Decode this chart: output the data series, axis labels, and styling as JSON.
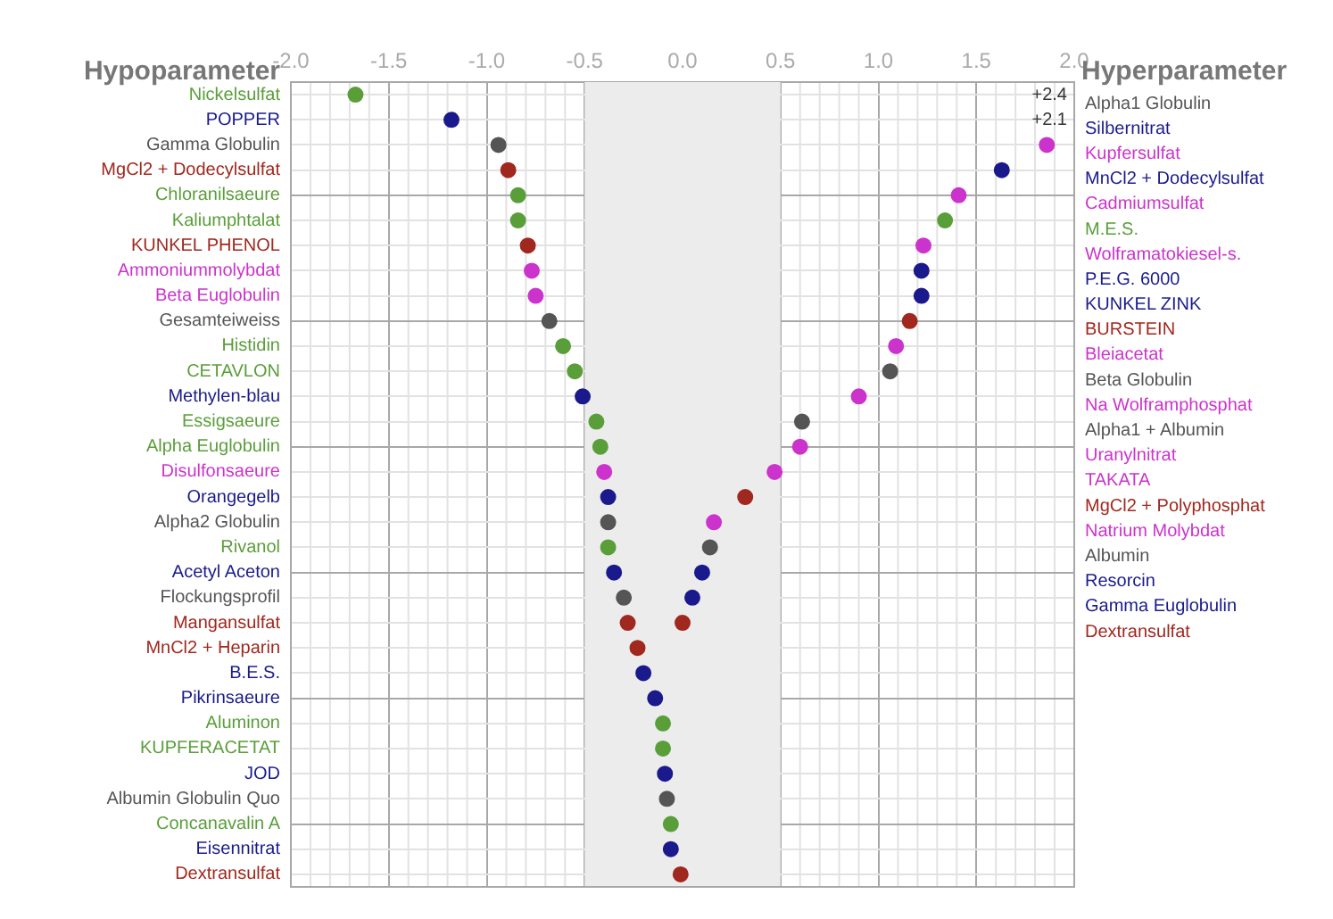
{
  "chart_data": {
    "type": "scatter",
    "orientation": "horizontal",
    "ylabel": "Hypoparameter",
    "y2label": "Hyperparameter",
    "categories": [
      "Nickelsulfat",
      "POPPER",
      "Gamma Globulin",
      "MgCl2 + Dodecylsulfat",
      "Chloranilsaeure",
      "Kaliumphtalat",
      "KUNKEL PHENOL",
      "Ammoniummolybdat",
      "Beta Euglobulin",
      "Gesamteiweiss",
      "Histidin",
      "CETAVLON",
      "Methylen-blau",
      "Essigsaeure",
      "Alpha Euglobulin",
      "Disulfonsaeure",
      "Orangegelb",
      "Alpha2 Globulin",
      "Rivanol",
      "Acetyl Aceton",
      "Flockungsprofil",
      "Mangansulfat",
      "MnCl2 + Heparin",
      "B.E.S.",
      "Pikrinsaeure",
      "Aluminon",
      "KUPFERACETAT",
      "JOD",
      "Albumin Globulin Quo",
      "Concanavalin A",
      "Eisennitrat",
      "Dextransulfat"
    ],
    "y2_categories": [
      "Alpha1 Globulin",
      "Silbernitrat",
      "Kupfersulfat",
      "MnCl2 + Dodecylsulfat",
      "Cadmiumsulfat",
      "M.E.S.",
      "Wolframatokiesel-s.",
      "P.E.G. 6000",
      "KUNKEL ZINK",
      "BURSTEIN",
      "Bleiacetat",
      "Beta Globulin",
      "Na Wolframphosphat",
      "Alpha1 + Albumin",
      "Uranylnitrat",
      "TAKATA",
      "MgCl2 + Polyphosphat",
      "Natrium Molybdat",
      "Albumin",
      "Resorcin",
      "Gamma Euglobulin",
      "Dextransulfat",
      null,
      null,
      null,
      null,
      null,
      null,
      null,
      null,
      null,
      null
    ],
    "series": [
      {
        "values": [
          -1.67,
          -1.18,
          -0.94,
          -0.89,
          -0.84,
          -0.84,
          -0.79,
          -0.77,
          -0.75,
          -0.68,
          -0.61,
          -0.55,
          -0.51,
          -0.44,
          -0.42,
          -0.4,
          -0.38,
          -0.38,
          -0.38,
          -0.35,
          -0.3,
          -0.28,
          -0.23,
          -0.2,
          -0.14,
          -0.1,
          -0.1,
          -0.09,
          -0.08,
          -0.06,
          -0.06,
          -0.01
        ],
        "colors": [
          "#5a9e3a",
          "#1a1a8c",
          "#555555",
          "#a0281e",
          "#5a9e3a",
          "#5a9e3a",
          "#a0281e",
          "#cc33cc",
          "#cc33cc",
          "#555555",
          "#5a9e3a",
          "#5a9e3a",
          "#1a1a8c",
          "#5a9e3a",
          "#5a9e3a",
          "#cc33cc",
          "#1a1a8c",
          "#555555",
          "#5a9e3a",
          "#1a1a8c",
          "#555555",
          "#a0281e",
          "#a0281e",
          "#1a1a8c",
          "#1a1a8c",
          "#5a9e3a",
          "#5a9e3a",
          "#1a1a8c",
          "#555555",
          "#5a9e3a",
          "#1a1a8c",
          "#a0281e"
        ]
      },
      {
        "axis": "y2",
        "values": [
          null,
          null,
          1.86,
          1.63,
          1.41,
          1.34,
          1.23,
          1.22,
          1.22,
          1.16,
          1.09,
          1.06,
          0.9,
          0.61,
          0.6,
          0.47,
          0.32,
          0.16,
          0.14,
          0.1,
          0.05,
          0.0,
          null,
          null,
          null,
          null,
          null,
          null,
          null,
          null,
          null,
          null
        ],
        "colors": [
          "#555555",
          "#1a1a8c",
          "#cc33cc",
          "#1a1a8c",
          "#cc33cc",
          "#5a9e3a",
          "#cc33cc",
          "#1a1a8c",
          "#1a1a8c",
          "#a0281e",
          "#cc33cc",
          "#555555",
          "#cc33cc",
          "#555555",
          "#cc33cc",
          "#cc33cc",
          "#a0281e",
          "#cc33cc",
          "#555555",
          "#1a1a8c",
          "#1a1a8c",
          "#a0281e",
          null,
          null,
          null,
          null,
          null,
          null,
          null,
          null,
          null,
          null
        ]
      }
    ],
    "xlim": [
      -2,
      2
    ],
    "xticks": [
      {
        "value": -2,
        "label": "-2.0"
      },
      {
        "value": -1.5,
        "label": "-1.5"
      },
      {
        "value": -1,
        "label": "-1.0"
      },
      {
        "value": -0.5,
        "label": "-0.5"
      },
      {
        "value": 0,
        "label": "0.0"
      },
      {
        "value": 0.5,
        "label": "0.5"
      },
      {
        "value": 1,
        "label": "1.0"
      },
      {
        "value": 1.5,
        "label": "1.5"
      },
      {
        "value": 2,
        "label": "2.0"
      }
    ],
    "bands": [
      {
        "axis": "x",
        "from": -0.5,
        "to": 0.5,
        "color": "#ececec"
      }
    ],
    "annotations": [
      "+2.4",
      "+2.1"
    ],
    "grid": true,
    "legend": false,
    "marker": "circle"
  }
}
